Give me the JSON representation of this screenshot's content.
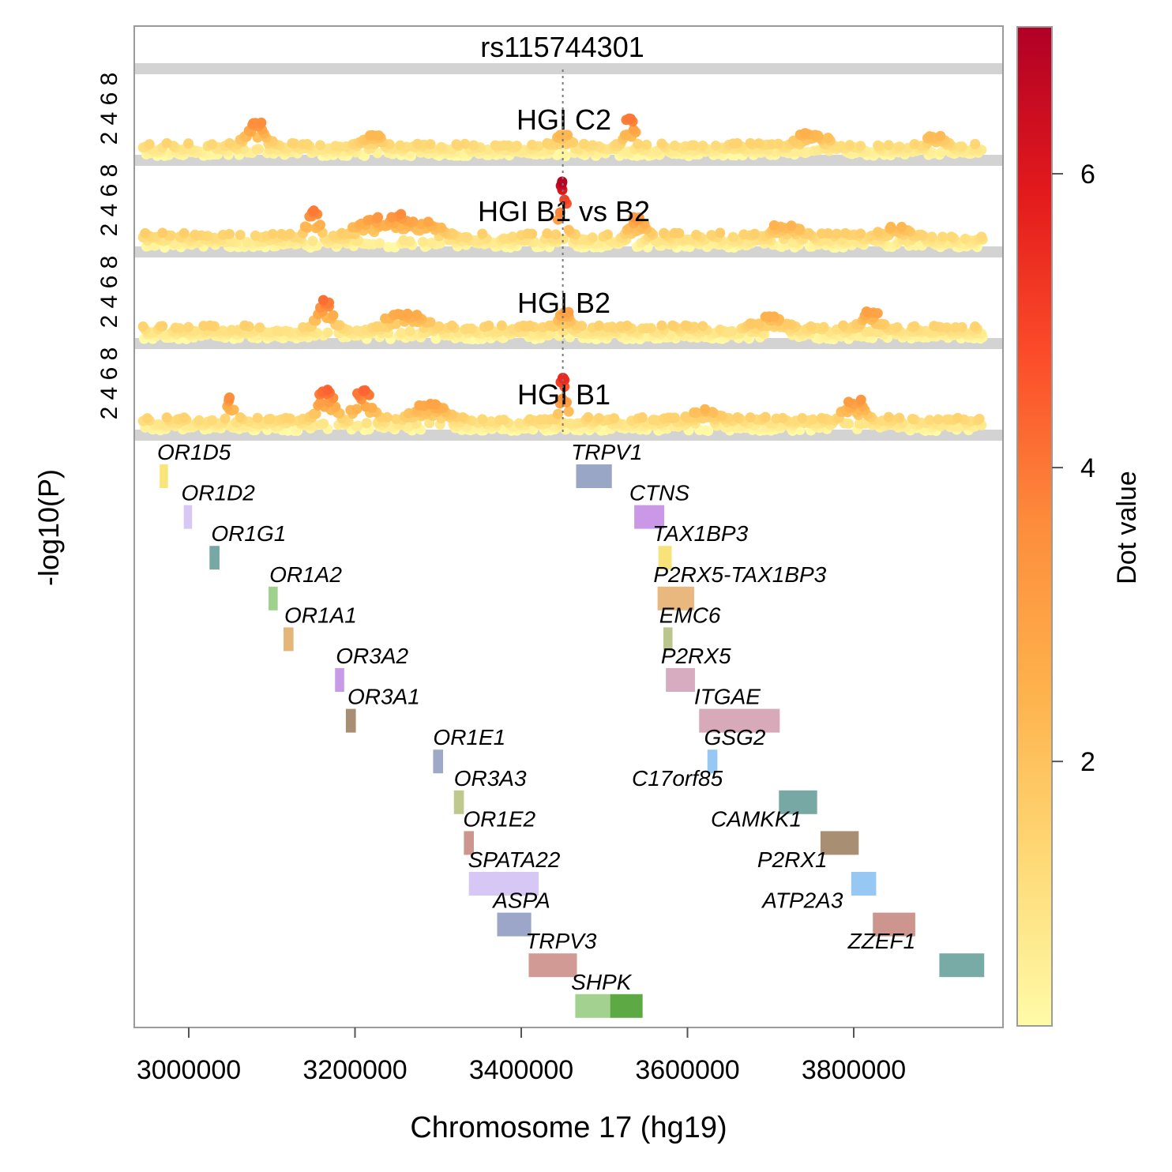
{
  "chart_data": {
    "type": "scatter",
    "title": "rs115744301",
    "xlabel": "Chromosome 17 (hg19)",
    "ylabel": "-log10(P)",
    "xlim": [
      2935000,
      3975000
    ],
    "x_ticks": [
      3000000,
      3200000,
      3400000,
      3600000,
      3800000
    ],
    "y_ticks": [
      2,
      4,
      6,
      8
    ],
    "ylim": [
      0,
      9
    ],
    "lead_variant_x": 3450000,
    "colorbar": {
      "title": "Dot value",
      "ticks": [
        2,
        4,
        6
      ],
      "range": [
        0.2,
        7.0
      ],
      "colors": [
        "#FFFBA8",
        "#FED976",
        "#FEB24C",
        "#FD8D3C",
        "#FC4E2A",
        "#E31A1C",
        "#B10026"
      ]
    },
    "panels": [
      {
        "name": "HGI C2",
        "peaks": [
          {
            "x": 3080000,
            "y": 3.6,
            "w": 25000
          },
          {
            "x": 3530000,
            "y": 4.0,
            "w": 12000
          },
          {
            "x": 3450000,
            "y": 2.5,
            "w": 20000
          },
          {
            "x": 3220000,
            "y": 2.4,
            "w": 30000
          },
          {
            "x": 3750000,
            "y": 2.6,
            "w": 40000
          },
          {
            "x": 3900000,
            "y": 2.4,
            "w": 30000
          }
        ],
        "base": 1.3
      },
      {
        "name": "HGI B1 vs B2",
        "peaks": [
          {
            "x": 3450000,
            "y": 6.9,
            "w": 8000
          },
          {
            "x": 3150000,
            "y": 4.0,
            "w": 15000
          },
          {
            "x": 3250000,
            "y": 3.6,
            "w": 80000
          },
          {
            "x": 3540000,
            "y": 3.3,
            "w": 20000
          },
          {
            "x": 3720000,
            "y": 2.5,
            "w": 40000
          },
          {
            "x": 3850000,
            "y": 2.4,
            "w": 40000
          }
        ],
        "base": 1.5
      },
      {
        "name": "HGI B2",
        "peaks": [
          {
            "x": 3165000,
            "y": 4.2,
            "w": 20000
          },
          {
            "x": 3260000,
            "y": 2.9,
            "w": 50000
          },
          {
            "x": 3450000,
            "y": 3.0,
            "w": 20000
          },
          {
            "x": 3820000,
            "y": 3.0,
            "w": 30000
          },
          {
            "x": 3700000,
            "y": 2.6,
            "w": 40000
          }
        ],
        "base": 1.4
      },
      {
        "name": "HGI B1",
        "peaks": [
          {
            "x": 3450000,
            "y": 5.6,
            "w": 8000
          },
          {
            "x": 3165000,
            "y": 4.4,
            "w": 20000
          },
          {
            "x": 3210000,
            "y": 4.3,
            "w": 20000
          },
          {
            "x": 3050000,
            "y": 3.6,
            "w": 8000
          },
          {
            "x": 3290000,
            "y": 3.0,
            "w": 40000
          },
          {
            "x": 3800000,
            "y": 3.4,
            "w": 25000
          },
          {
            "x": 3620000,
            "y": 2.4,
            "w": 40000
          }
        ],
        "base": 1.4
      }
    ],
    "genes": [
      {
        "name": "OR1D5",
        "start": 2965000,
        "end": 2975000,
        "row": 0,
        "color": "#F9E67A",
        "label_x": 2962000
      },
      {
        "name": "OR1D2",
        "start": 2994000,
        "end": 3004000,
        "row": 1,
        "color": "#D9C8F5",
        "label_x": 2991000
      },
      {
        "name": "OR1G1",
        "start": 3025000,
        "end": 3037000,
        "row": 2,
        "color": "#78A8A4",
        "label_x": 3027000
      },
      {
        "name": "OR1A2",
        "start": 3096000,
        "end": 3107000,
        "row": 3,
        "color": "#9ED08E",
        "label_x": 3097000
      },
      {
        "name": "OR1A1",
        "start": 3114000,
        "end": 3126000,
        "row": 4,
        "color": "#E5B67A",
        "label_x": 3115000
      },
      {
        "name": "OR3A2",
        "start": 3176000,
        "end": 3187000,
        "row": 5,
        "color": "#C79BE8",
        "label_x": 3177000
      },
      {
        "name": "OR3A1",
        "start": 3189000,
        "end": 3201000,
        "row": 6,
        "color": "#A88F73",
        "label_x": 3191000
      },
      {
        "name": "OR1E1",
        "start": 3294000,
        "end": 3306000,
        "row": 7,
        "color": "#9EA9C8",
        "label_x": 3294000
      },
      {
        "name": "OR3A3",
        "start": 3319000,
        "end": 3331000,
        "row": 8,
        "color": "#BFC98E",
        "label_x": 3319000
      },
      {
        "name": "OR1E2",
        "start": 3331000,
        "end": 3343000,
        "row": 9,
        "color": "#CC968E",
        "label_x": 3330000
      },
      {
        "name": "SPATA22",
        "start": 3337000,
        "end": 3421000,
        "row": 10,
        "color": "#D7C7F5",
        "label_x": 3336000
      },
      {
        "name": "ASPA",
        "start": 3371000,
        "end": 3412000,
        "row": 11,
        "color": "#9CA6C8",
        "label_x": 3366000
      },
      {
        "name": "TRPV3",
        "start": 3409000,
        "end": 3467000,
        "row": 12,
        "color": "#D29A94",
        "label_x": 3405000
      },
      {
        "name": "SHPK",
        "start": 3465000,
        "end": 3507000,
        "row": 13,
        "color": "#A3D18F",
        "label_x": 3460000
      },
      {
        "name": "SHPK",
        "start": 3507000,
        "end": 3546000,
        "row": 13,
        "color": "#5DAA44",
        "label_x": null
      },
      {
        "name": "TRPV1",
        "start": 3466000,
        "end": 3509000,
        "row": 0,
        "color": "#9AA6C6",
        "label_x": 3460000
      },
      {
        "name": "CTNS",
        "start": 3536000,
        "end": 3572000,
        "row": 1,
        "color": "#CA98E6",
        "label_x": 3530000
      },
      {
        "name": "TAX1BP3",
        "start": 3565000,
        "end": 3581000,
        "row": 2,
        "color": "#F8E27A",
        "label_x": 3558000
      },
      {
        "name": "P2RX5-TAX1BP3",
        "start": 3564000,
        "end": 3608000,
        "row": 3,
        "color": "#E8B87E",
        "label_x": 3559000
      },
      {
        "name": "EMC6",
        "start": 3571000,
        "end": 3582000,
        "row": 4,
        "color": "#BBC68E",
        "label_x": 3566000
      },
      {
        "name": "P2RX5",
        "start": 3574000,
        "end": 3609000,
        "row": 5,
        "color": "#D8ACC0",
        "label_x": 3568000
      },
      {
        "name": "ITGAE",
        "start": 3614000,
        "end": 3711000,
        "row": 6,
        "color": "#D8A9B9",
        "label_x": 3608000
      },
      {
        "name": "GSG2",
        "start": 3624000,
        "end": 3636000,
        "row": 7,
        "color": "#97C8F3",
        "label_x": 3620000
      },
      {
        "name": "C17orf85",
        "start": 3710000,
        "end": 3756000,
        "row": 8,
        "color": "#78A8A4",
        "label_x": 3533000
      },
      {
        "name": "CAMKK1",
        "start": 3760000,
        "end": 3806000,
        "row": 9,
        "color": "#A88F73",
        "label_x": 3628000
      },
      {
        "name": "P2RX1",
        "start": 3797000,
        "end": 3827000,
        "row": 10,
        "color": "#97C8F3",
        "label_x": 3684000
      },
      {
        "name": "ATP2A3",
        "start": 3823000,
        "end": 3874000,
        "row": 11,
        "color": "#CC968E",
        "label_x": 3690000
      },
      {
        "name": "ZZEF1",
        "start": 3903000,
        "end": 3957000,
        "row": 12,
        "color": "#78ABA6",
        "label_x": 3793000
      }
    ]
  }
}
